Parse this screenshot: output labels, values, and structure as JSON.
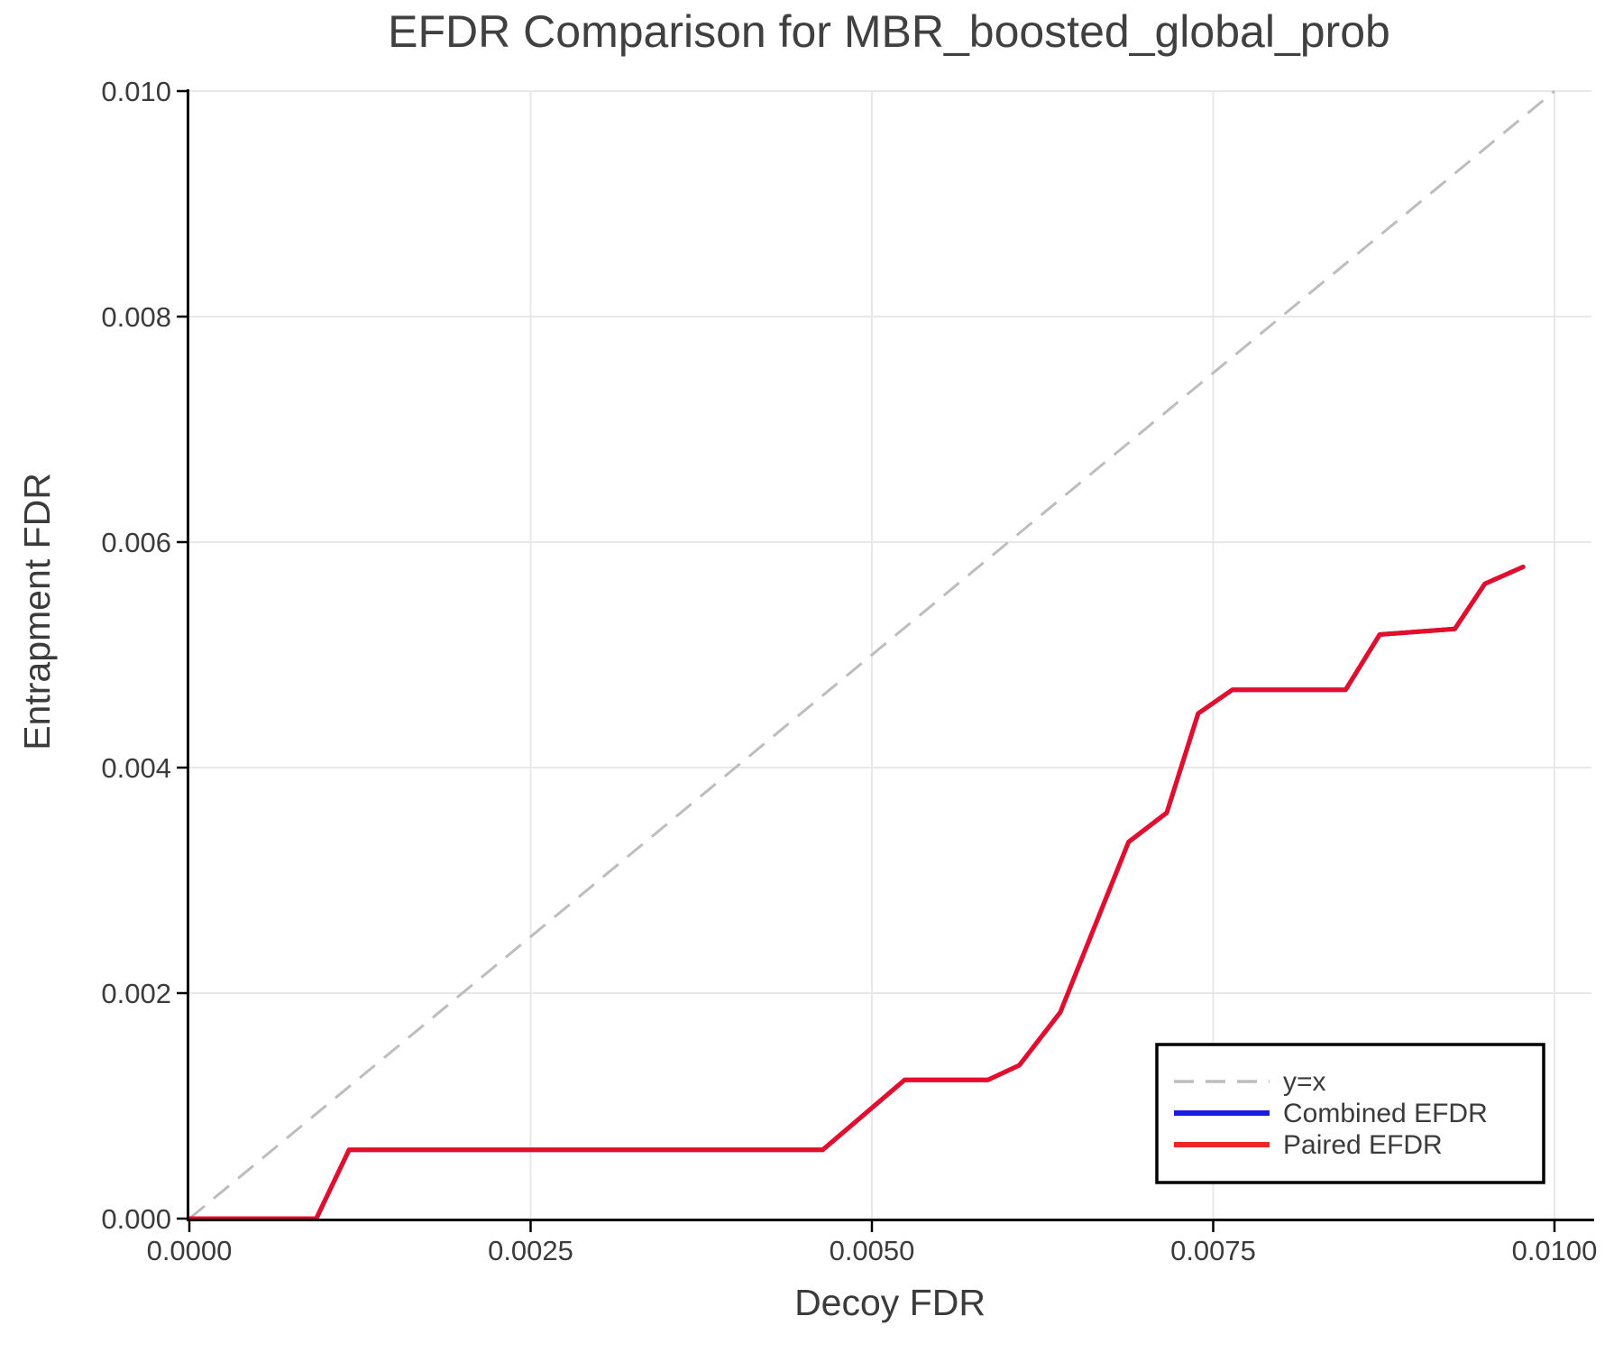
{
  "title": "EFDR Comparison for MBR_boosted_global_prob",
  "chart_data": {
    "type": "line",
    "title": "EFDR Comparison for MBR_boosted_global_prob",
    "xlabel": "Decoy FDR",
    "ylabel": "Entrapment FDR",
    "xlim": [
      0,
      0.0103
    ],
    "ylim": [
      0,
      0.0101
    ],
    "grid": true,
    "x_ticks": {
      "values": [
        0,
        0.0025,
        0.005,
        0.0075,
        0.01
      ],
      "labels": [
        "0.0000",
        "0.0025",
        "0.0050",
        "0.0075",
        "0.0100"
      ]
    },
    "y_ticks": {
      "values": [
        0,
        0.002,
        0.004,
        0.006,
        0.008,
        0.01
      ],
      "labels": [
        "0.000",
        "0.002",
        "0.004",
        "0.006",
        "0.008",
        "0.010"
      ]
    },
    "reference_line": {
      "label": "y=x",
      "from": [
        0,
        0
      ],
      "to": [
        0.01,
        0.01
      ],
      "style": "dashed",
      "color": "#bdbdbd"
    },
    "series": [
      {
        "name": "Combined EFDR",
        "color": "#1c1ce8",
        "x": [
          0.0,
          0.00093,
          0.00117,
          0.00464,
          0.00524,
          0.00585,
          0.00608,
          0.00638,
          0.00688,
          0.00716,
          0.00739,
          0.00764,
          0.00847,
          0.00872,
          0.00927,
          0.00949,
          0.00977
        ],
        "y": [
          0.0,
          0.0,
          0.00061,
          0.00061,
          0.00123,
          0.00123,
          0.00136,
          0.00183,
          0.00334,
          0.0036,
          0.00448,
          0.00469,
          0.00469,
          0.00518,
          0.00523,
          0.00563,
          0.00578
        ]
      },
      {
        "name": "Paired EFDR",
        "color": "#e40e2b",
        "x": [
          0.0,
          0.00093,
          0.00117,
          0.00464,
          0.00524,
          0.00585,
          0.00608,
          0.00638,
          0.00688,
          0.00716,
          0.00739,
          0.00764,
          0.00847,
          0.00872,
          0.00927,
          0.00949,
          0.00977
        ],
        "y": [
          0.0,
          0.0,
          0.00061,
          0.00061,
          0.00123,
          0.00123,
          0.00136,
          0.00183,
          0.00334,
          0.0036,
          0.00448,
          0.00469,
          0.00469,
          0.00518,
          0.00523,
          0.00563,
          0.00578
        ]
      }
    ],
    "legend": {
      "position": "lower right",
      "entries": [
        {
          "label": "y=x",
          "color": "#bdbdbd",
          "style": "dashed"
        },
        {
          "label": "Combined EFDR",
          "color": "#1c1ce8",
          "style": "solid"
        },
        {
          "label": "Paired EFDR",
          "color": "#f22525",
          "style": "solid"
        }
      ]
    }
  },
  "colors": {
    "background": "#ffffff",
    "grid": "#e8e8e8",
    "spine": "#000000",
    "text": "#3b3b3b",
    "reference": "#bdbdbd",
    "combined": "#1c1ce8",
    "paired": "#e40e2b"
  }
}
